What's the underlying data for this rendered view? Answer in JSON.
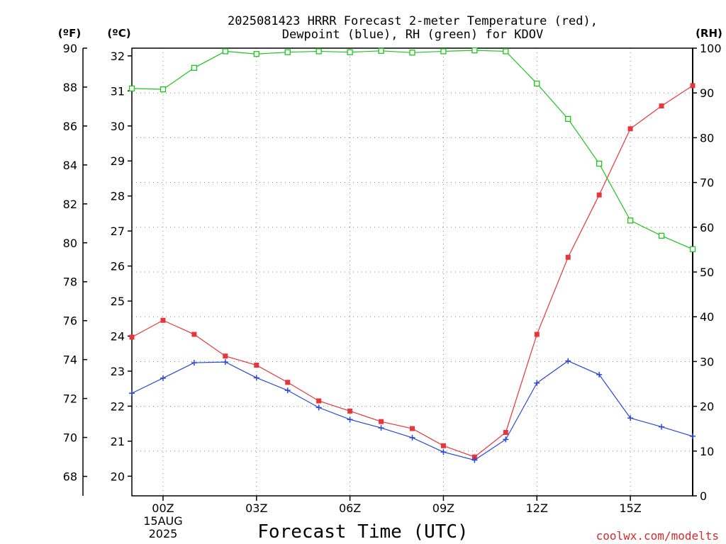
{
  "chart_data": {
    "type": "line",
    "title": "2025081423 HRRR Forecast 2-meter Temperature (red),",
    "subtitle": "Dewpoint (blue), RH (green) for KDOV",
    "xlabel": "Forecast Time (UTC)",
    "x_ticks": [
      {
        "hour": 0,
        "label": "00Z",
        "sub1": "15AUG",
        "sub2": "2025"
      },
      {
        "hour": 3,
        "label": "03Z"
      },
      {
        "hour": 6,
        "label": "06Z"
      },
      {
        "hour": 9,
        "label": "09Z"
      },
      {
        "hour": 12,
        "label": "12Z"
      },
      {
        "hour": 15,
        "label": "15Z"
      }
    ],
    "xlim": [
      -1,
      17
    ],
    "x": [
      -1,
      0,
      1,
      2,
      3,
      4,
      5,
      6,
      7,
      8,
      9,
      10,
      11,
      12,
      13,
      14,
      15,
      16,
      17
    ],
    "axes": {
      "celsius": {
        "unit_label": "(ºC)",
        "ylim": [
          19.44,
          32.22
        ],
        "ticks": [
          20,
          21,
          22,
          23,
          24,
          25,
          26,
          27,
          28,
          29,
          30,
          31,
          32
        ]
      },
      "fahrenheit": {
        "unit_label": "(ºF)",
        "ylim": [
          67,
          90
        ],
        "ticks": [
          68,
          70,
          72,
          74,
          76,
          78,
          80,
          82,
          84,
          86,
          88,
          90
        ]
      },
      "rh": {
        "unit_label": "(RH)",
        "ylim": [
          0,
          100
        ],
        "ticks": [
          0,
          10,
          20,
          30,
          40,
          50,
          60,
          70,
          80,
          90,
          100
        ]
      }
    },
    "series": [
      {
        "name": "Temperature",
        "axis": "celsius",
        "color": "#e8353a",
        "marker": "filled-square",
        "values": [
          23.97,
          24.45,
          24.05,
          23.43,
          23.17,
          22.68,
          22.15,
          21.86,
          21.56,
          21.36,
          20.87,
          20.55,
          21.25,
          24.05,
          26.25,
          28.03,
          29.92,
          30.57,
          31.15
        ]
      },
      {
        "name": "Dewpoint",
        "axis": "celsius",
        "color": "#2a47d6",
        "marker": "plus",
        "values": [
          22.37,
          22.8,
          23.24,
          23.26,
          22.81,
          22.45,
          21.96,
          21.62,
          21.38,
          21.1,
          20.69,
          20.46,
          21.05,
          22.66,
          23.29,
          22.9,
          21.66,
          21.41,
          21.14
        ]
      },
      {
        "name": "RH",
        "axis": "rh",
        "color": "#1ec51e",
        "marker": "open-square",
        "values": [
          91,
          90.8,
          95.6,
          99.3,
          98.7,
          99.1,
          99.3,
          99.1,
          99.4,
          99.0,
          99.3,
          99.5,
          99.3,
          92.1,
          84.2,
          74.2,
          61.5,
          58.1,
          55.1
        ]
      }
    ]
  },
  "credit": "coolwx.com/modelts"
}
